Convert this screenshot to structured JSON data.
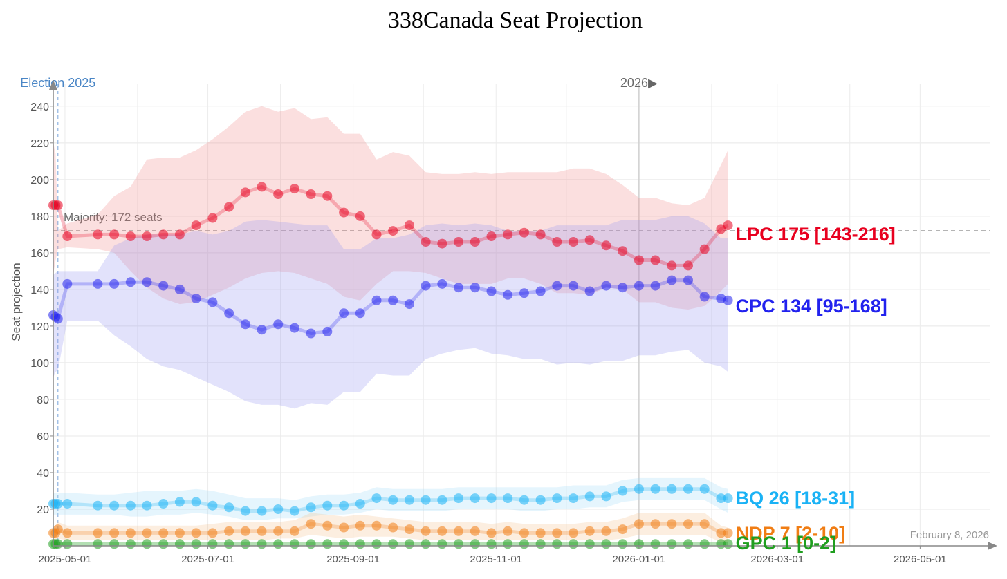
{
  "chart_data": {
    "type": "line",
    "title": "338Canada Seat Projection",
    "ylabel": "Seat projection",
    "xlabel": "",
    "ylim": [
      0,
      252
    ],
    "xlim": [
      "2025-04-26",
      "2026-05-31"
    ],
    "y_ticks": [
      20,
      40,
      60,
      80,
      100,
      120,
      140,
      160,
      180,
      200,
      220,
      240
    ],
    "x_ticks": [
      {
        "date": "2025-05-01",
        "label": "2025-05-01"
      },
      {
        "date": "2025-07-01",
        "label": "2025-07-01"
      },
      {
        "date": "2025-09-01",
        "label": "2025-09-01"
      },
      {
        "date": "2025-11-01",
        "label": "2025-11-01"
      },
      {
        "date": "2026-01-01",
        "label": "2026-01-01"
      },
      {
        "date": "2026-03-01",
        "label": "2026-03-01"
      },
      {
        "date": "2026-05-01",
        "label": "2026-05-01"
      }
    ],
    "grid": true,
    "majority": {
      "value": 172,
      "label": "Majority: 172 seats"
    },
    "election_marker": {
      "date": "2025-04-28",
      "label": "Election 2025"
    },
    "year_marker": {
      "date": "2026-01-01",
      "label": "2026▶"
    },
    "date_note": "February 8, 2026",
    "dates": [
      "2025-04-26",
      "2025-04-27",
      "2025-04-28",
      "2025-05-02",
      "2025-05-15",
      "2025-05-22",
      "2025-05-29",
      "2025-06-05",
      "2025-06-12",
      "2025-06-19",
      "2025-06-26",
      "2025-07-03",
      "2025-07-10",
      "2025-07-17",
      "2025-07-24",
      "2025-07-31",
      "2025-08-07",
      "2025-08-14",
      "2025-08-21",
      "2025-08-28",
      "2025-09-04",
      "2025-09-11",
      "2025-09-18",
      "2025-09-25",
      "2025-10-02",
      "2025-10-09",
      "2025-10-16",
      "2025-10-23",
      "2025-10-30",
      "2025-11-06",
      "2025-11-13",
      "2025-11-20",
      "2025-11-27",
      "2025-12-04",
      "2025-12-11",
      "2025-12-18",
      "2025-12-25",
      "2026-01-01",
      "2026-01-08",
      "2026-01-15",
      "2026-01-22",
      "2026-01-29",
      "2026-02-05",
      "2026-02-08"
    ],
    "series": [
      {
        "name": "LPC",
        "color": "#e8001f",
        "band_color": "#f28d8d",
        "label": "LPC 175 [143-216]",
        "values": [
          186,
          186,
          186,
          169,
          170,
          170,
          169,
          169,
          170,
          170,
          175,
          179,
          185,
          193,
          196,
          192,
          195,
          192,
          191,
          182,
          180,
          170,
          172,
          175,
          166,
          165,
          166,
          166,
          169,
          170,
          171,
          170,
          166,
          166,
          167,
          164,
          161,
          156,
          156,
          153,
          153,
          162,
          173,
          175
        ],
        "low": [
          148,
          156,
          162,
          163,
          162,
          160,
          150,
          141,
          135,
          132,
          133,
          137,
          141,
          146,
          149,
          150,
          149,
          146,
          143,
          136,
          134,
          143,
          150,
          150,
          149,
          146,
          143,
          143,
          143,
          146,
          146,
          143,
          138,
          138,
          137,
          141,
          140,
          133,
          133,
          130,
          129,
          131,
          139,
          143
        ],
        "high": [
          220,
          214,
          172,
          176,
          181,
          191,
          196,
          211,
          212,
          212,
          216,
          222,
          229,
          237,
          240,
          237,
          239,
          233,
          234,
          225,
          225,
          211,
          215,
          213,
          204,
          203,
          203,
          204,
          203,
          204,
          204,
          204,
          204,
          206,
          206,
          203,
          197,
          190,
          190,
          187,
          186,
          190,
          208,
          216
        ]
      },
      {
        "name": "CPC",
        "color": "#2222ee",
        "band_color": "#9696f2",
        "label": "CPC 134 [95-168]",
        "values": [
          126,
          125,
          124,
          143,
          143,
          143,
          144,
          144,
          142,
          140,
          135,
          133,
          127,
          121,
          118,
          121,
          119,
          116,
          117,
          127,
          127,
          134,
          134,
          132,
          142,
          143,
          141,
          141,
          139,
          137,
          138,
          139,
          142,
          142,
          139,
          142,
          141,
          142,
          142,
          145,
          145,
          136,
          135,
          134
        ],
        "low": [
          92,
          95,
          96,
          123,
          123,
          115,
          109,
          102,
          98,
          96,
          92,
          88,
          84,
          79,
          77,
          77,
          75,
          78,
          77,
          84,
          84,
          94,
          93,
          93,
          102,
          105,
          107,
          108,
          105,
          104,
          102,
          102,
          99,
          100,
          99,
          101,
          101,
          104,
          104,
          106,
          107,
          100,
          98,
          95
        ],
        "high": [
          148,
          149,
          150,
          150,
          150,
          164,
          168,
          170,
          170,
          170,
          172,
          170,
          172,
          177,
          178,
          177,
          176,
          175,
          175,
          162,
          162,
          168,
          168,
          170,
          175,
          176,
          175,
          176,
          175,
          172,
          172,
          172,
          175,
          175,
          175,
          175,
          178,
          178,
          178,
          180,
          180,
          176,
          168,
          168
        ]
      },
      {
        "name": "BQ",
        "color": "#1ab2f5",
        "band_color": "#a0dcf8",
        "label": "BQ 26 [18-31]",
        "values": [
          23,
          23,
          23,
          23,
          22,
          22,
          22,
          22,
          23,
          24,
          24,
          22,
          21,
          19,
          19,
          20,
          19,
          21,
          22,
          22,
          23,
          26,
          25,
          25,
          25,
          25,
          26,
          26,
          26,
          26,
          25,
          25,
          26,
          26,
          27,
          27,
          30,
          31,
          31,
          31,
          31,
          31,
          26,
          26
        ],
        "low": [
          17,
          17,
          17,
          17,
          17,
          17,
          16,
          16,
          17,
          17,
          18,
          17,
          16,
          14,
          14,
          15,
          15,
          16,
          17,
          17,
          18,
          20,
          19,
          19,
          19,
          19,
          20,
          20,
          20,
          20,
          19,
          19,
          20,
          20,
          21,
          21,
          24,
          25,
          25,
          25,
          25,
          25,
          20,
          18
        ],
        "high": [
          29,
          29,
          29,
          29,
          28,
          28,
          29,
          30,
          30,
          30,
          31,
          30,
          28,
          26,
          26,
          26,
          25,
          27,
          28,
          28,
          29,
          32,
          31,
          31,
          31,
          31,
          32,
          32,
          32,
          32,
          32,
          32,
          32,
          33,
          33,
          33,
          36,
          37,
          37,
          37,
          37,
          37,
          32,
          31
        ]
      },
      {
        "name": "NDP",
        "color": "#f07d14",
        "band_color": "#f5c190",
        "label": "NDP 7 [2-10]",
        "values": [
          7,
          7,
          9,
          7,
          7,
          7,
          7,
          7,
          7,
          7,
          7,
          7,
          8,
          8,
          8,
          8,
          8,
          12,
          11,
          10,
          11,
          11,
          10,
          9,
          8,
          8,
          8,
          8,
          7,
          8,
          7,
          7,
          7,
          7,
          8,
          8,
          9,
          12,
          12,
          12,
          12,
          12,
          7,
          7
        ],
        "low": [
          3,
          3,
          4,
          3,
          3,
          3,
          3,
          3,
          3,
          3,
          3,
          3,
          3,
          3,
          3,
          4,
          4,
          6,
          5,
          4,
          5,
          5,
          5,
          4,
          3,
          3,
          3,
          3,
          3,
          3,
          3,
          3,
          3,
          3,
          3,
          3,
          4,
          6,
          6,
          6,
          6,
          6,
          2,
          2
        ],
        "high": [
          11,
          11,
          13,
          11,
          11,
          11,
          11,
          11,
          11,
          11,
          11,
          12,
          13,
          13,
          13,
          13,
          14,
          18,
          17,
          16,
          17,
          16,
          15,
          14,
          13,
          13,
          13,
          13,
          12,
          13,
          12,
          12,
          12,
          12,
          13,
          13,
          15,
          18,
          18,
          18,
          18,
          18,
          11,
          10
        ]
      },
      {
        "name": "GPC",
        "color": "#1f9e1f",
        "band_color": "#9ed89e",
        "label": "GPC 1 [0-2]",
        "values": [
          1,
          1,
          1,
          1,
          1,
          1,
          1,
          1,
          1,
          1,
          1,
          1,
          1,
          1,
          1,
          1,
          1,
          1,
          1,
          1,
          1,
          1,
          1,
          1,
          1,
          1,
          1,
          1,
          1,
          1,
          1,
          1,
          1,
          1,
          1,
          1,
          1,
          1,
          1,
          1,
          1,
          1,
          1,
          1
        ],
        "low": [
          0,
          0,
          0,
          0,
          0,
          0,
          0,
          0,
          0,
          0,
          0,
          0,
          0,
          0,
          0,
          0,
          0,
          0,
          0,
          0,
          0,
          0,
          0,
          0,
          0,
          0,
          0,
          0,
          0,
          0,
          0,
          0,
          0,
          0,
          0,
          0,
          0,
          0,
          0,
          0,
          0,
          0,
          0,
          0
        ],
        "high": [
          2,
          2,
          2,
          2,
          2,
          2,
          2,
          2,
          2,
          2,
          2,
          2,
          2,
          2,
          2,
          2,
          2,
          2,
          2,
          2,
          2,
          2,
          2,
          2,
          2,
          2,
          2,
          2,
          2,
          2,
          2,
          2,
          2,
          2,
          2,
          2,
          2,
          2,
          2,
          2,
          2,
          2,
          2,
          2
        ]
      }
    ]
  }
}
